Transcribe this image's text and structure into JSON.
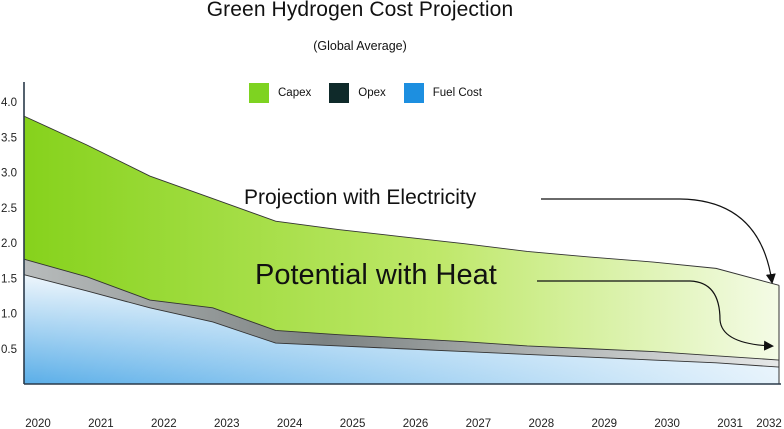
{
  "title": "Green Hydrogen Cost  Projection",
  "subtitle": "(Global Average)",
  "annotations": {
    "electricity": "Projection with Electricity",
    "heat": "Potential with Heat"
  },
  "colors": {
    "capex": "#7ed321",
    "opex": "#0f2a2a",
    "fuel": "#1d8fe0",
    "axis": "#2a3a4a"
  },
  "chart_data": {
    "type": "area",
    "stacked": true,
    "x": [
      "2020",
      "2021",
      "2022",
      "2023",
      "2024",
      "2025",
      "2026",
      "2027",
      "2028",
      "2029",
      "2030",
      "2031",
      "2032"
    ],
    "ylim": [
      0,
      4.0
    ],
    "yticks": [
      "4.0",
      "3.5",
      "3.0",
      "2.5",
      "2.0",
      "1.5",
      "1.0",
      "0.5"
    ],
    "series": [
      {
        "name": "Fuel Cost",
        "color": "#1d8fe0",
        "values": [
          1.55,
          1.32,
          1.08,
          0.88,
          0.58,
          0.54,
          0.5,
          0.46,
          0.42,
          0.38,
          0.34,
          0.3,
          0.24
        ]
      },
      {
        "name": "Opex",
        "color": "#0f2a2a",
        "values": [
          0.22,
          0.2,
          0.11,
          0.2,
          0.18,
          0.16,
          0.15,
          0.14,
          0.12,
          0.12,
          0.12,
          0.1,
          0.1
        ]
      },
      {
        "name": "Capex",
        "color": "#7ed321",
        "values": [
          2.03,
          1.87,
          1.76,
          1.55,
          1.55,
          1.49,
          1.44,
          1.39,
          1.34,
          1.3,
          1.27,
          1.24,
          1.06
        ]
      }
    ],
    "legend": "top-center"
  }
}
